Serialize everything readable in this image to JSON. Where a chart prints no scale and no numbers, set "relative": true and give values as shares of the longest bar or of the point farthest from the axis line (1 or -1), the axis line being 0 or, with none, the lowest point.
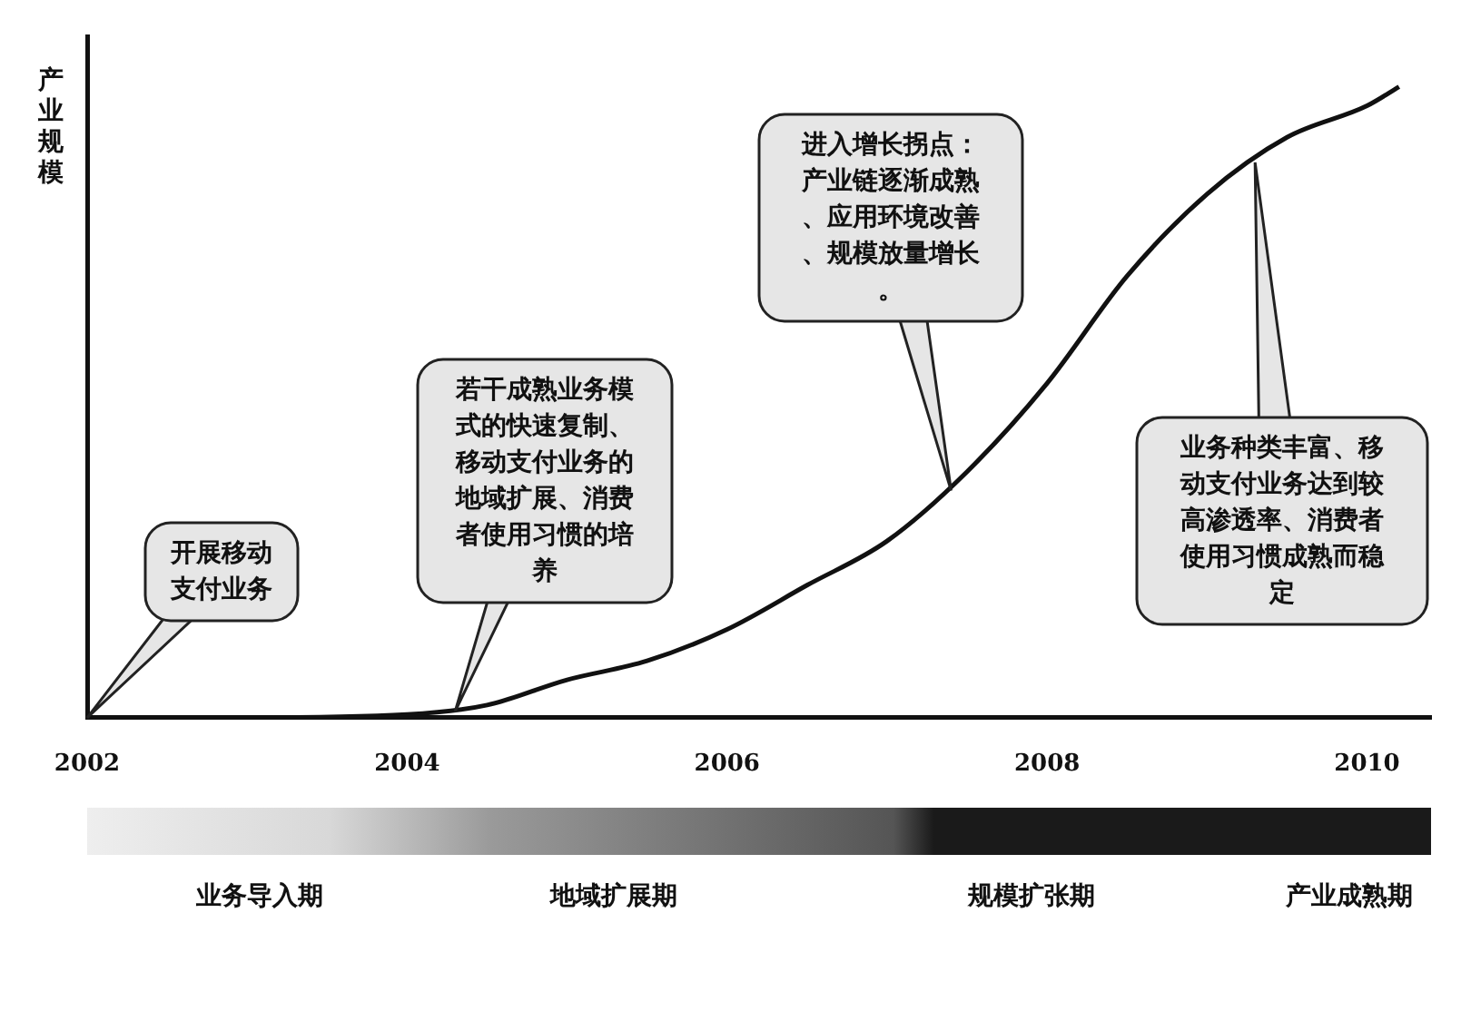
{
  "chart_data": {
    "type": "line",
    "ylabel": "产业规模",
    "relative": true,
    "x": [
      2002,
      2003,
      2004,
      2004.5,
      2005,
      2005.5,
      2006,
      2006.5,
      2007,
      2007.5,
      2008,
      2008.5,
      2009,
      2009.5,
      2010,
      2010.2
    ],
    "series": [
      {
        "color": "#111111",
        "values": [
          0,
          0,
          0.005,
          0.02,
          0.06,
          0.09,
          0.14,
          0.21,
          0.28,
          0.39,
          0.53,
          0.7,
          0.83,
          0.92,
          0.97,
          1
        ]
      }
    ],
    "xlim": [
      2002,
      2010.4
    ],
    "xticks": [
      2002,
      2004,
      2006,
      2008,
      2010
    ],
    "grid": false,
    "legend": false,
    "marker": "none",
    "line_style": "solid",
    "annotations": [
      "开展移动支付业务",
      {
        "text": "若干成熟业务模式的快速复制、移动支付业务的地域扩展、消费者使用习惯的培养",
        "x": 2004.3,
        "y": 0.01
      },
      {
        "text": "进入增长拐点：产业链逐渐成熟、应用环境改善、规模放量增长。",
        "x": 2007.4,
        "y": 0.36
      },
      {
        "text": "业务种类丰富、移动支付业务达到较高渗透率、消费者使用习惯成熟而稳定",
        "x": 2009.3,
        "y": 0.88
      },
      "业务导入期",
      "地域扩展期",
      "规模扩张期",
      "产业成熟期"
    ]
  }
}
